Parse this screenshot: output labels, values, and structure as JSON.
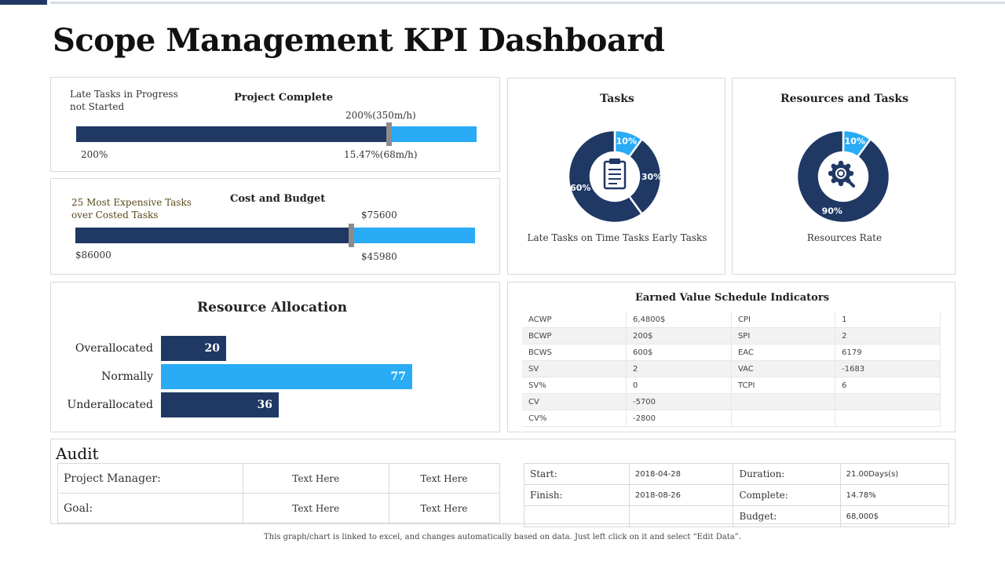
{
  "title": "Scope Management KPI Dashboard",
  "project_complete": {
    "heading": "Project Complete",
    "legend": "Late Tasks in Progress not Started",
    "target_label": "200%(350m/h)",
    "left_value": "200%",
    "right_value": "15.47%(68m/h)",
    "fill_fraction": 0.78
  },
  "cost_budget": {
    "heading": "Cost and Budget",
    "legend": "25 Most Expensive Tasks over Costed Tasks",
    "target_label": "$75600",
    "left_value": "$86000",
    "right_value": "$45980",
    "fill_fraction": 0.69
  },
  "tasks": {
    "heading": "Tasks",
    "caption": "Late Tasks on Time Tasks Early Tasks",
    "slices": [
      {
        "label": "10%",
        "value": 10,
        "color": "#29abf5"
      },
      {
        "label": "30%",
        "value": 30,
        "color": "#1f3864"
      },
      {
        "label": "60%",
        "value": 60,
        "color": "#1f3864"
      }
    ],
    "icon": "clipboard-icon"
  },
  "resources_tasks": {
    "heading": "Resources and Tasks",
    "caption": "Resources Rate",
    "slices": [
      {
        "label": "10%",
        "value": 10,
        "color": "#29abf5"
      },
      {
        "label": "90%",
        "value": 90,
        "color": "#1f3864"
      }
    ],
    "icon": "gear-search-icon"
  },
  "resource_allocation": {
    "heading": "Resource Allocation",
    "rows": [
      {
        "label": "Overallocated",
        "value": 20,
        "color": "#1f3864"
      },
      {
        "label": "Normally",
        "value": 77,
        "color": "#29abf5"
      },
      {
        "label": "Underallocated",
        "value": 36,
        "color": "#1f3864"
      }
    ]
  },
  "earned_value": {
    "heading": "Earned Value Schedule Indicators",
    "rows": [
      [
        "ACWP",
        "6,4800$",
        "CPI",
        "1"
      ],
      [
        "BCWP",
        "200$",
        "SPI",
        "2"
      ],
      [
        "BCWS",
        "600$",
        "EAC",
        "6179"
      ],
      [
        "SV",
        "2",
        "VAC",
        "-1683"
      ],
      [
        "SV%",
        "0",
        "TCPI",
        "6"
      ],
      [
        "CV",
        "-5700",
        "",
        ""
      ],
      [
        "CV%",
        "-2800",
        "",
        ""
      ]
    ]
  },
  "audit": {
    "heading": "Audit",
    "rows": [
      [
        "Project Manager:",
        "Text Here",
        "Text Here"
      ],
      [
        "Goal:",
        "Text Here",
        "Text Here"
      ]
    ]
  },
  "schedule": {
    "rows": [
      [
        "Start:",
        "2018-04-28",
        "Duration:",
        "21.00Days(s)"
      ],
      [
        "Finish:",
        "2018-08-26",
        "Complete:",
        "14.78%"
      ],
      [
        "",
        "",
        "Budget:",
        "68,000$"
      ]
    ]
  },
  "footer": "This graph/chart is linked to excel, and changes automatically based on data. Just left click on it and select “Edit Data”."
}
